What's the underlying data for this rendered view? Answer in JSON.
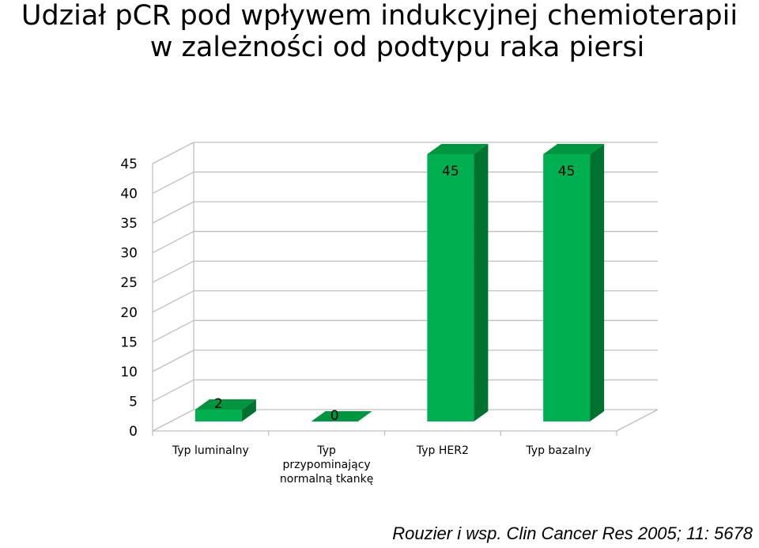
{
  "title_line1": "Udział pCR pod wpływem indukcyjnej chemioterapii",
  "title_line2": "w zależności od podtypu raka piersi",
  "source": "Rouzier i wsp. Clin Cancer Res 2005; 11: 5678",
  "colors": {
    "bar_front": "#00b050",
    "bar_side": "#00722f",
    "bar_top": "#00953f",
    "gridline": "#bfbfbf"
  },
  "chart_data": {
    "type": "bar",
    "style": "3d-column",
    "categories": [
      [
        "Typ luminalny"
      ],
      [
        "Typ",
        "przypominający",
        "normalną tkankę"
      ],
      [
        "Typ HER2"
      ],
      [
        "Typ bazalny"
      ]
    ],
    "values": [
      2,
      0,
      45,
      45
    ],
    "data_labels": [
      "2",
      "0",
      "45",
      "45"
    ],
    "y_ticks": [
      "0",
      "5",
      "10",
      "15",
      "20",
      "25",
      "30",
      "35",
      "40",
      "45"
    ],
    "ylim": [
      0,
      45
    ],
    "grid": true,
    "legend": "none"
  }
}
